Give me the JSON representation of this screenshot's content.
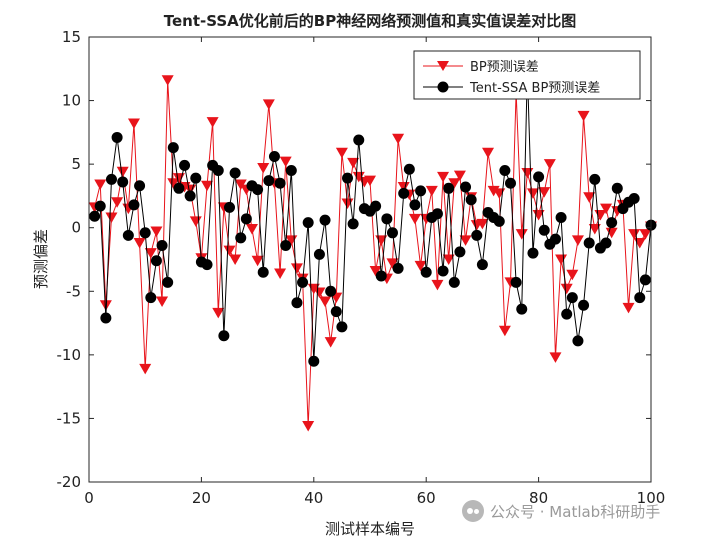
{
  "chart_data": {
    "type": "line",
    "title": "Tent-SSA优化前后的BP神经网络预测值和真实值误差对比图",
    "xlabel": "测试样本编号",
    "ylabel": "预测偏差",
    "xlim": [
      0,
      100
    ],
    "ylim": [
      -20,
      15
    ],
    "xticks": [
      0,
      20,
      40,
      60,
      80,
      100
    ],
    "yticks": [
      -20,
      -15,
      -10,
      -5,
      0,
      5,
      10,
      15
    ],
    "legend_position": "top-right",
    "x": [
      1,
      2,
      3,
      4,
      5,
      6,
      7,
      8,
      9,
      10,
      11,
      12,
      13,
      14,
      15,
      16,
      17,
      18,
      19,
      20,
      21,
      22,
      23,
      24,
      25,
      26,
      27,
      28,
      29,
      30,
      31,
      32,
      33,
      34,
      35,
      36,
      37,
      38,
      39,
      40,
      41,
      42,
      43,
      44,
      45,
      46,
      47,
      48,
      49,
      50,
      51,
      52,
      53,
      54,
      55,
      56,
      57,
      58,
      59,
      60,
      61,
      62,
      63,
      64,
      65,
      66,
      67,
      68,
      69,
      70,
      71,
      72,
      73,
      74,
      75,
      76,
      77,
      78,
      79,
      80,
      81,
      82,
      83,
      84,
      85,
      86,
      87,
      88,
      89,
      90,
      91,
      92,
      93,
      94,
      95,
      96,
      97,
      98,
      99,
      100
    ],
    "series": [
      {
        "name": "BP预测误差",
        "color": "#e8141b",
        "marker": "triangle-down",
        "values": [
          1.6,
          3.4,
          -6.1,
          0.8,
          2.0,
          4.4,
          1.5,
          8.2,
          -1.2,
          -11.1,
          -2.0,
          -0.3,
          -5.8,
          11.6,
          3.5,
          3.9,
          3.2,
          3.0,
          0.5,
          -2.4,
          3.3,
          8.3,
          -6.7,
          1.6,
          -1.8,
          -2.5,
          3.4,
          3.0,
          -0.1,
          -2.6,
          4.7,
          9.7,
          3.5,
          -3.6,
          5.2,
          -1.0,
          -3.2,
          -4.0,
          -15.6,
          -4.8,
          -5.1,
          -5.8,
          -9.0,
          -5.5,
          5.9,
          1.9,
          5.1,
          4.0,
          3.6,
          3.7,
          -3.4,
          -1.0,
          -4.0,
          -2.8,
          7.0,
          3.2,
          2.6,
          0.7,
          -3.0,
          0.7,
          2.9,
          -4.5,
          4.0,
          -2.5,
          3.5,
          4.1,
          -1.0,
          2.4,
          0.2,
          0.3,
          5.9,
          2.9,
          2.7,
          -8.1,
          -4.3,
          10.7,
          -0.5,
          4.3,
          2.7,
          1.0,
          2.8,
          5.0,
          -10.2,
          -2.5,
          -4.8,
          -3.7,
          -1.0,
          8.8,
          2.4,
          -0.1,
          1.0,
          1.5,
          -0.4,
          1.3,
          1.8,
          -6.3,
          -0.5,
          -1.2,
          -0.5,
          0.1
        ]
      },
      {
        "name": "Tent-SSA BP预测误差",
        "color": "#000000",
        "marker": "circle",
        "values": [
          0.9,
          1.7,
          -7.1,
          3.8,
          7.1,
          3.6,
          -0.6,
          1.8,
          3.3,
          -0.4,
          -5.5,
          -2.6,
          -1.4,
          -4.3,
          6.3,
          3.1,
          4.9,
          2.5,
          3.9,
          -2.7,
          -2.9,
          4.9,
          4.5,
          -8.5,
          1.6,
          4.3,
          -0.8,
          0.7,
          3.3,
          3.0,
          -3.5,
          3.7,
          5.6,
          3.5,
          -1.4,
          4.5,
          -5.9,
          -4.3,
          0.4,
          -10.5,
          -2.1,
          0.6,
          -5.0,
          -6.6,
          -7.8,
          3.9,
          0.3,
          6.9,
          1.5,
          1.3,
          1.7,
          -3.8,
          0.7,
          -0.4,
          -3.2,
          2.7,
          4.6,
          1.8,
          2.9,
          -3.5,
          0.8,
          1.1,
          -3.4,
          3.1,
          -4.3,
          -1.9,
          3.2,
          2.2,
          -0.6,
          -2.9,
          1.2,
          0.8,
          0.5,
          4.5,
          3.5,
          -4.3,
          -6.4,
          12.4,
          -2.0,
          4.0,
          -0.2,
          -1.3,
          -0.9,
          0.8,
          -6.8,
          -5.5,
          -8.9,
          -6.1,
          -1.2,
          3.8,
          -1.6,
          -1.2,
          0.4,
          3.1,
          1.5,
          2.0,
          2.3,
          -5.5,
          -4.1,
          0.2
        ]
      }
    ]
  },
  "watermark": {
    "text": "公众号 · Matlab科研助手",
    "icon": "wechat-icon"
  }
}
